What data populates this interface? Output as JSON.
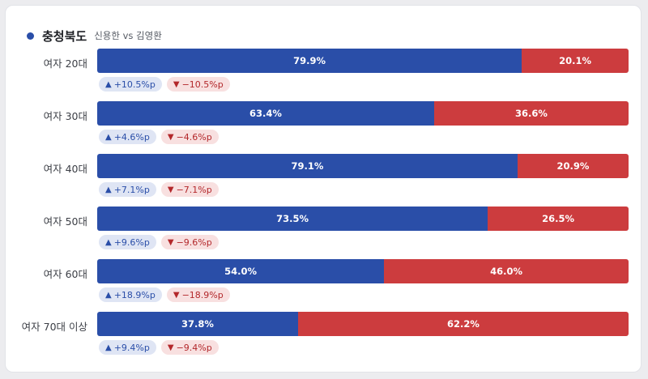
{
  "header": {
    "region": "충청북도",
    "matchup": "신용한 vs 김영환"
  },
  "colors": {
    "candidate_a": "#2a4ea8",
    "candidate_b": "#cc3c3e"
  },
  "chart_data": {
    "type": "bar",
    "orientation": "horizontal-stacked-100",
    "title": "충청북도",
    "subtitle": "신용한 vs 김영환",
    "categories": [
      "여자 20대",
      "여자 30대",
      "여자 40대",
      "여자 50대",
      "여자 60대",
      "여자 70대 이상"
    ],
    "series": [
      {
        "values": [
          79.9,
          63.4,
          79.1,
          73.5,
          54.0,
          37.8
        ]
      },
      {
        "values": [
          20.1,
          36.6,
          20.9,
          26.5,
          46.0,
          62.2
        ]
      }
    ],
    "rows": [
      {
        "label": "여자 20대",
        "a": 79.9,
        "b": 20.1,
        "a_text": "79.9%",
        "b_text": "20.1%",
        "up": "+10.5%p",
        "down": "−10.5%p"
      },
      {
        "label": "여자 30대",
        "a": 63.4,
        "b": 36.6,
        "a_text": "63.4%",
        "b_text": "36.6%",
        "up": "+4.6%p",
        "down": "−4.6%p"
      },
      {
        "label": "여자 40대",
        "a": 79.1,
        "b": 20.9,
        "a_text": "79.1%",
        "b_text": "20.9%",
        "up": "+7.1%p",
        "down": "−7.1%p"
      },
      {
        "label": "여자 50대",
        "a": 73.5,
        "b": 26.5,
        "a_text": "73.5%",
        "b_text": "26.5%",
        "up": "+9.6%p",
        "down": "−9.6%p"
      },
      {
        "label": "여자 60대",
        "a": 54.0,
        "b": 46.0,
        "a_text": "54.0%",
        "b_text": "46.0%",
        "up": "+18.9%p",
        "down": "−18.9%p"
      },
      {
        "label": "여자 70대 이상",
        "a": 37.8,
        "b": 62.2,
        "a_text": "37.8%",
        "b_text": "62.2%",
        "up": "+9.4%p",
        "down": "−9.4%p"
      }
    ]
  }
}
